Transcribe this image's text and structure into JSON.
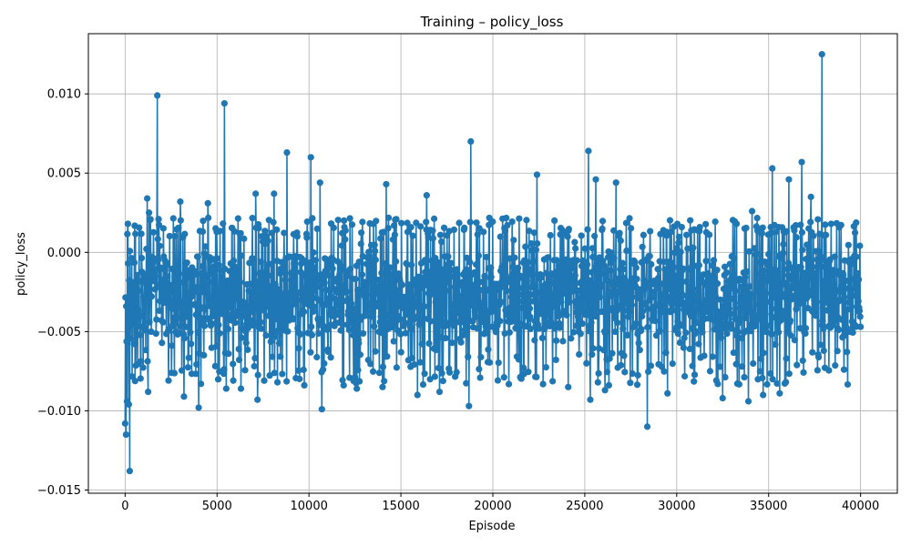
{
  "chart_data": {
    "type": "line",
    "title": "Training – policy_loss",
    "xlabel": "Episode",
    "ylabel": "policy_loss",
    "xlim": [
      -2000,
      42000
    ],
    "ylim": [
      -0.0152,
      0.0138
    ],
    "xticks": [
      0,
      5000,
      10000,
      15000,
      20000,
      25000,
      30000,
      35000,
      40000
    ],
    "yticks": [
      -0.015,
      -0.01,
      -0.005,
      0.0,
      0.005,
      0.01
    ],
    "xtick_labels": [
      "0",
      "5000",
      "10000",
      "15000",
      "20000",
      "25000",
      "30000",
      "35000",
      "40000"
    ],
    "ytick_labels": [
      "−0.015",
      "−0.010",
      "−0.005",
      "0.000",
      "0.005",
      "0.010"
    ],
    "grid": true,
    "color": "#1f77b4",
    "marker": "circle",
    "series": [
      {
        "name": "",
        "x_start": 0,
        "x_end": 40000,
        "n_points": 2000,
        "band_low": -0.0072,
        "band_high": 0.001,
        "notable_points": [
          {
            "x": 0,
            "y": -0.0108
          },
          {
            "x": 50,
            "y": -0.0115
          },
          {
            "x": 100,
            "y": -0.0094
          },
          {
            "x": 150,
            "y": 0.0018
          },
          {
            "x": 200,
            "y": -0.0096
          },
          {
            "x": 250,
            "y": -0.0138
          },
          {
            "x": 1200,
            "y": 0.0034
          },
          {
            "x": 1300,
            "y": 0.0025
          },
          {
            "x": 1250,
            "y": -0.0088
          },
          {
            "x": 1750,
            "y": 0.0099
          },
          {
            "x": 3000,
            "y": 0.0032
          },
          {
            "x": 3200,
            "y": -0.0091
          },
          {
            "x": 4000,
            "y": -0.0098
          },
          {
            "x": 4500,
            "y": 0.0031
          },
          {
            "x": 5400,
            "y": 0.0094
          },
          {
            "x": 5500,
            "y": -0.0086
          },
          {
            "x": 6300,
            "y": -0.0086
          },
          {
            "x": 7100,
            "y": 0.0037
          },
          {
            "x": 7200,
            "y": -0.0093
          },
          {
            "x": 8100,
            "y": 0.0037
          },
          {
            "x": 8800,
            "y": 0.0063
          },
          {
            "x": 10100,
            "y": 0.006
          },
          {
            "x": 10600,
            "y": 0.0044
          },
          {
            "x": 10700,
            "y": -0.0099
          },
          {
            "x": 12600,
            "y": -0.0086
          },
          {
            "x": 14000,
            "y": -0.0085
          },
          {
            "x": 14200,
            "y": 0.0043
          },
          {
            "x": 15900,
            "y": -0.009
          },
          {
            "x": 16400,
            "y": 0.0036
          },
          {
            "x": 17100,
            "y": -0.0088
          },
          {
            "x": 18700,
            "y": -0.0097
          },
          {
            "x": 18800,
            "y": 0.007
          },
          {
            "x": 22400,
            "y": 0.0049
          },
          {
            "x": 24100,
            "y": -0.0085
          },
          {
            "x": 25200,
            "y": 0.0064
          },
          {
            "x": 25300,
            "y": -0.0093
          },
          {
            "x": 25600,
            "y": 0.0046
          },
          {
            "x": 26100,
            "y": -0.0087
          },
          {
            "x": 26700,
            "y": 0.0044
          },
          {
            "x": 28400,
            "y": -0.011
          },
          {
            "x": 29500,
            "y": -0.0089
          },
          {
            "x": 32500,
            "y": -0.0092
          },
          {
            "x": 33900,
            "y": -0.0094
          },
          {
            "x": 34100,
            "y": 0.0026
          },
          {
            "x": 34700,
            "y": -0.009
          },
          {
            "x": 35200,
            "y": 0.0053
          },
          {
            "x": 35600,
            "y": -0.0089
          },
          {
            "x": 36100,
            "y": 0.0046
          },
          {
            "x": 36800,
            "y": 0.0057
          },
          {
            "x": 37300,
            "y": 0.0035
          },
          {
            "x": 37900,
            "y": 0.0125
          },
          {
            "x": 38400,
            "y": 0.0018
          },
          {
            "x": 39100,
            "y": -0.0074
          },
          {
            "x": 40000,
            "y": -0.0047
          }
        ]
      }
    ]
  }
}
